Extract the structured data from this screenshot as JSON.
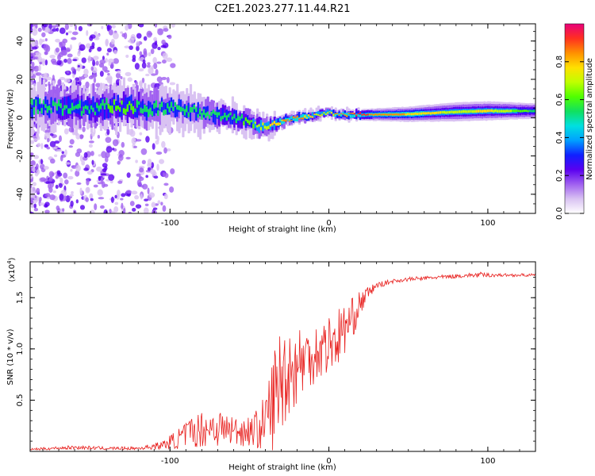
{
  "page_title": "C2E1.2023.277.11.44.R21",
  "colors": {
    "snr_line": "#e8201e",
    "colormap": [
      "#ffffff",
      "#d9c2f2",
      "#a060f0",
      "#5a00f0",
      "#1020ff",
      "#00a0ff",
      "#00e0e0",
      "#10e060",
      "#50ff00",
      "#c0ff00",
      "#ffe000",
      "#ff9000",
      "#ff3020",
      "#e8007a"
    ]
  },
  "chart_data": [
    {
      "id": "spectrogram",
      "type": "heatmap",
      "xlabel": "Height of straight line (km)",
      "ylabel": "Frequency (Hz)",
      "xlim": [
        -188,
        130
      ],
      "ylim": [
        -50,
        49
      ],
      "xticks": [
        -100,
        0,
        100
      ],
      "xtick_labels": [
        "-100",
        "0",
        "100"
      ],
      "yticks": [
        -40,
        -20,
        0,
        20,
        40
      ],
      "ytick_labels": [
        "-40",
        "-20",
        "0",
        "20",
        "40"
      ],
      "signal_track": {
        "x": [
          -188,
          -170,
          -150,
          -130,
          -115,
          -100,
          -85,
          -70,
          -60,
          -50,
          -45,
          -40,
          -35,
          -30,
          -25,
          -20,
          -15,
          -10,
          -5,
          0,
          5,
          20,
          50,
          80,
          100,
          130
        ],
        "freq_hz": [
          6,
          5.5,
          5,
          6,
          4.5,
          5,
          3,
          1,
          0,
          -2,
          -4,
          -5,
          -4,
          -2,
          -1,
          0,
          0.5,
          1,
          2,
          3,
          1.5,
          1.5,
          1.8,
          3,
          3.5,
          3.5
        ],
        "bandwidth_hz": [
          10,
          10,
          10,
          10,
          10,
          9,
          9,
          8,
          7,
          6,
          6,
          5,
          5,
          4,
          3,
          3,
          3,
          3,
          3,
          3,
          2.5,
          3,
          4,
          5,
          5,
          4
        ],
        "amplitude": [
          0.5,
          0.55,
          0.55,
          0.6,
          0.55,
          0.5,
          0.5,
          0.55,
          0.55,
          0.6,
          0.7,
          0.7,
          0.75,
          0.8,
          0.85,
          0.85,
          0.8,
          0.75,
          0.7,
          0.7,
          0.85,
          0.9,
          0.8,
          0.7,
          0.75,
          0.55
        ]
      },
      "colorbar": {
        "label": "Normalized spectral amplitude",
        "range": [
          0,
          1
        ],
        "ticks": [
          0.0,
          0.2,
          0.4,
          0.6,
          0.8
        ],
        "tick_labels": [
          "0.0",
          "0.2",
          "0.4",
          "0.6",
          "0.8"
        ]
      }
    },
    {
      "id": "snr",
      "type": "line",
      "xlabel": "Height of straight line (km)",
      "ylabel": "SNR (10 * v/v)",
      "multiplier_label": "(x10",
      "multiplier_exp": "4",
      "multiplier_close": ")",
      "xlim": [
        -188,
        130
      ],
      "ylim": [
        0,
        1.85
      ],
      "xticks": [
        -100,
        0,
        100
      ],
      "xtick_labels": [
        "-100",
        "0",
        "100"
      ],
      "yticks": [
        0.5,
        1.0,
        1.5
      ],
      "ytick_labels": [
        "0.5",
        "1.0",
        "1.5"
      ],
      "x": [
        -188,
        -160,
        -140,
        -120,
        -105,
        -95,
        -88,
        -80,
        -72,
        -65,
        -58,
        -50,
        -45,
        -42,
        -40,
        -36,
        -33,
        -30,
        -28,
        -25,
        -22,
        -20,
        -15,
        -10,
        -5,
        0,
        5,
        10,
        15,
        20,
        25,
        30,
        40,
        50,
        60,
        70,
        80,
        90,
        95,
        100,
        110,
        120,
        130
      ],
      "y": [
        0.02,
        0.04,
        0.03,
        0.03,
        0.06,
        0.12,
        0.18,
        0.22,
        0.24,
        0.22,
        0.2,
        0.2,
        0.22,
        0.25,
        0.3,
        0.45,
        0.6,
        0.7,
        0.75,
        0.8,
        0.8,
        0.85,
        0.9,
        0.95,
        1.0,
        1.05,
        1.1,
        1.2,
        1.3,
        1.45,
        1.55,
        1.62,
        1.66,
        1.68,
        1.69,
        1.7,
        1.71,
        1.72,
        1.72,
        1.72,
        1.72,
        1.72,
        1.72
      ],
      "noise_amplitude": [
        0.01,
        0.02,
        0.015,
        0.015,
        0.04,
        0.1,
        0.15,
        0.18,
        0.2,
        0.17,
        0.15,
        0.15,
        0.2,
        0.25,
        0.3,
        0.45,
        0.55,
        0.55,
        0.5,
        0.45,
        0.4,
        0.4,
        0.35,
        0.3,
        0.3,
        0.3,
        0.3,
        0.25,
        0.2,
        0.12,
        0.06,
        0.03,
        0.02,
        0.02,
        0.02,
        0.02,
        0.02,
        0.02,
        0.03,
        0.02,
        0.015,
        0.015,
        0.015
      ]
    }
  ]
}
